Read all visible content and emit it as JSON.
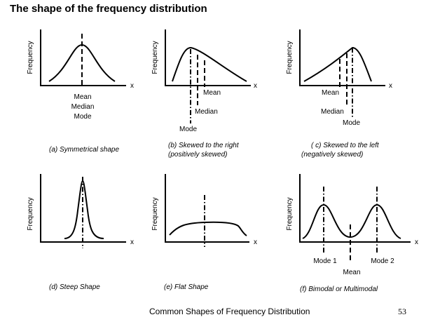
{
  "title": "The shape of the frequency distribution",
  "footer": {
    "text": "Common Shapes of Frequency Distribution",
    "page": "53"
  },
  "panels": [
    {
      "id": "a",
      "y_label": "Frequency",
      "x_label": "x",
      "caption": "(a) Symmetrical shape",
      "markers": [
        "Mean",
        "Median",
        "Mode"
      ]
    },
    {
      "id": "b",
      "y_label": "Frequency",
      "x_label": "x",
      "caption": [
        "(b) Skewed to the right",
        "(positively skewed)"
      ],
      "markers": [
        "Mean",
        "Median",
        "Mode"
      ]
    },
    {
      "id": "c",
      "y_label": "Frequency",
      "x_label": "x",
      "caption": [
        "( c) Skewed to the left",
        "(negatively skewed)"
      ],
      "markers": [
        "Mean",
        "Median",
        "Mode"
      ]
    },
    {
      "id": "d",
      "y_label": "Frequency",
      "x_label": "x",
      "caption": "(d) Steep Shape"
    },
    {
      "id": "e",
      "y_label": "Frequency",
      "x_label": "x",
      "caption": "(e) Flat Shape"
    },
    {
      "id": "f",
      "y_label": "Frequency",
      "x_label": "x",
      "caption": "(f) Bimodal or Multimodal",
      "markers": [
        "Mode 1",
        "Mean",
        "Mode 2"
      ]
    }
  ]
}
